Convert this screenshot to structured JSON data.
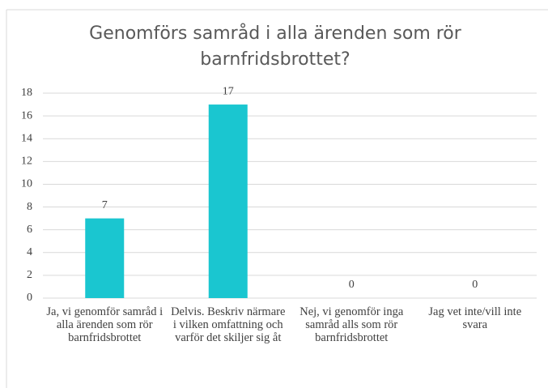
{
  "chart_data": {
    "type": "bar",
    "title": "Genomförs samråd i alla ärenden som rör barnfridsbrottet?",
    "categories": [
      "Ja, vi genomför samråd i alla ärenden som rör barnfridsbrottet",
      "Delvis. Beskriv närmare i vilken omfattning och varför det skiljer sig åt",
      "Nej, vi genomför inga samråd alls som rör barnfridsbrottet",
      "Jag vet inte/vill inte svara"
    ],
    "values": [
      7,
      17,
      0,
      0
    ],
    "color": "#1ac6d0",
    "ylim": [
      0,
      18
    ],
    "yticks": [
      0,
      2,
      4,
      6,
      8,
      10,
      12,
      14,
      16,
      18
    ],
    "grid": true
  }
}
